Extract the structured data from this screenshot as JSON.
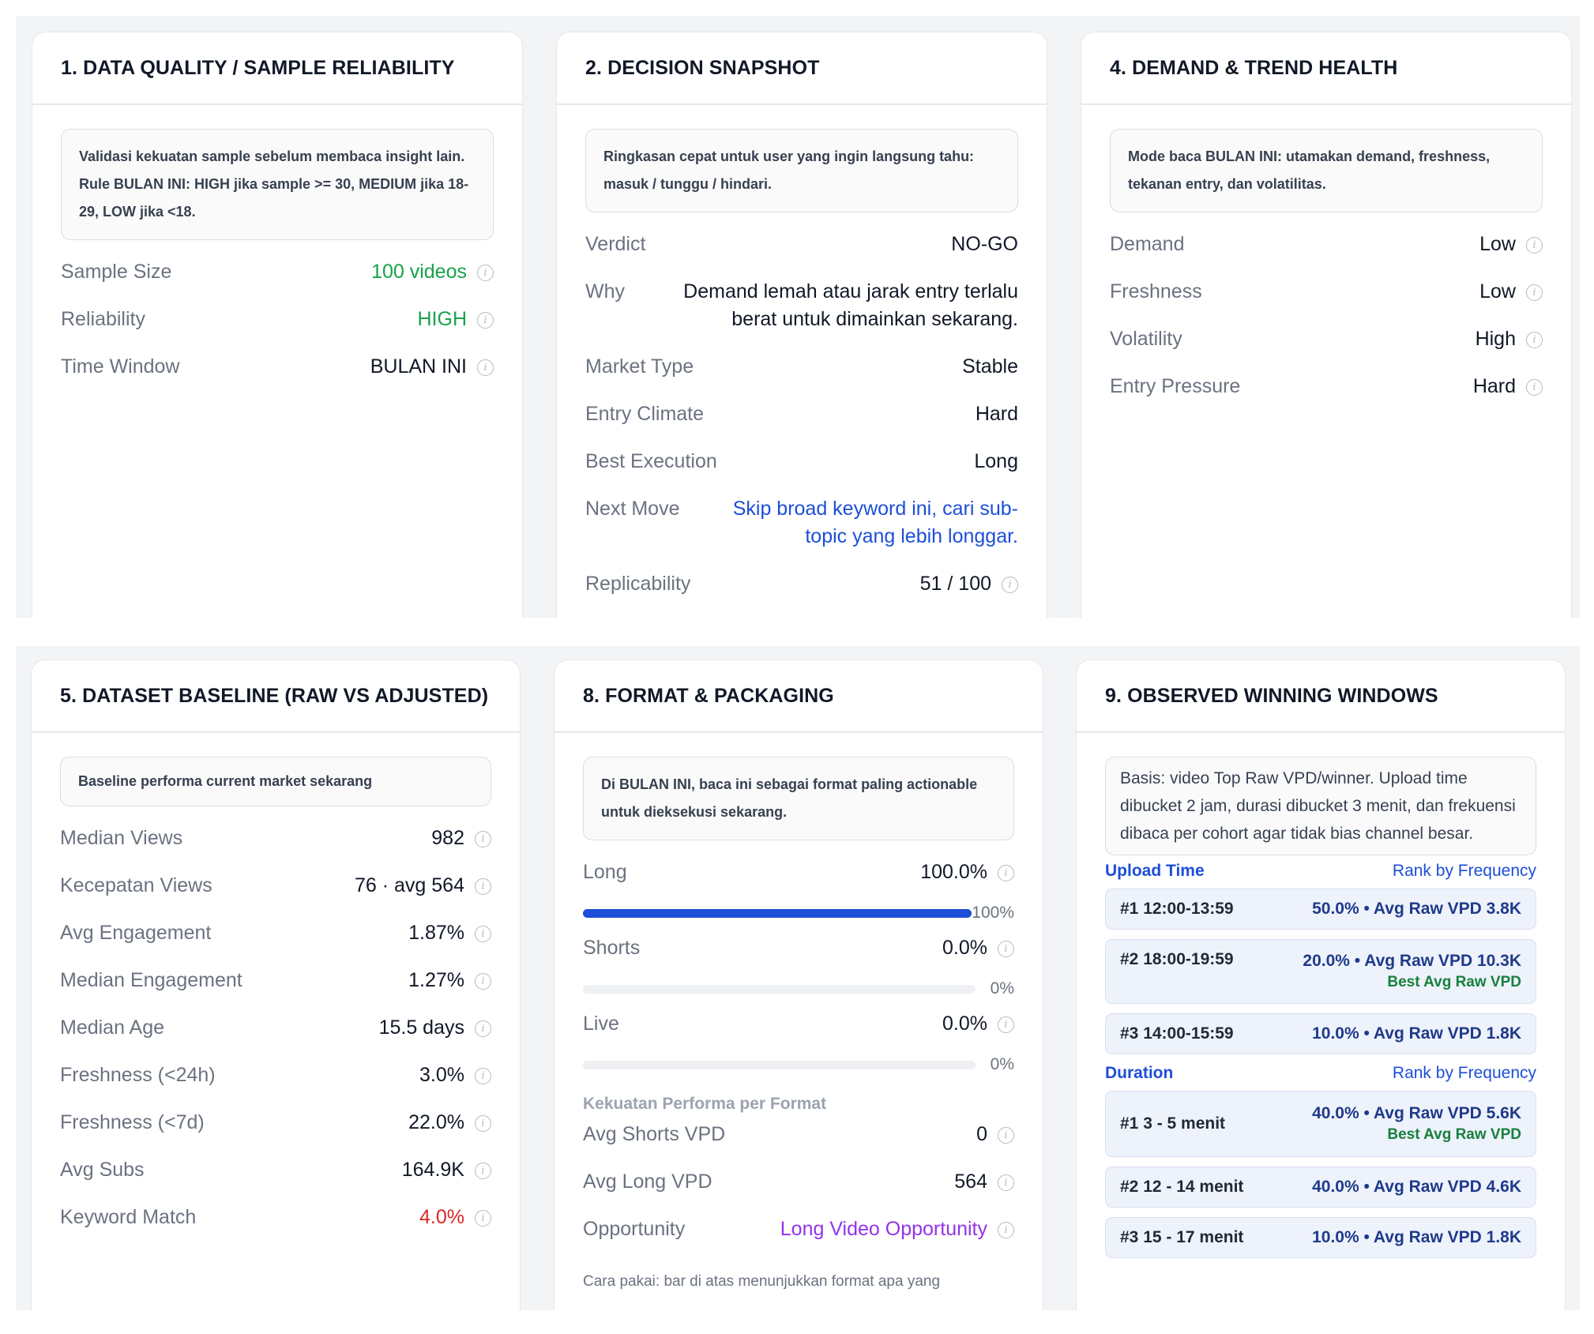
{
  "cards": {
    "data_quality": {
      "title": "1. DATA QUALITY / SAMPLE RELIABILITY",
      "desc": "Validasi kekuatan sample sebelum membaca insight lain. Rule BULAN INI: HIGH jika sample >= 30, MEDIUM jika 18-29, LOW jika <18.",
      "rows": [
        {
          "label": "Sample Size",
          "value": "100 videos"
        },
        {
          "label": "Reliability",
          "value": "HIGH"
        },
        {
          "label": "Time Window",
          "value": "BULAN INI"
        }
      ]
    },
    "decision": {
      "title": "2. DECISION SNAPSHOT",
      "desc": "Ringkasan cepat untuk user yang ingin langsung tahu: masuk / tunggu / hindari.",
      "rows": [
        {
          "label": "Verdict",
          "value": "NO-GO"
        },
        {
          "label": "Why",
          "value": "Demand lemah atau jarak entry terlalu berat untuk dimainkan sekarang."
        },
        {
          "label": "Market Type",
          "value": "Stable"
        },
        {
          "label": "Entry Climate",
          "value": "Hard"
        },
        {
          "label": "Best Execution",
          "value": "Long"
        },
        {
          "label": "Next Move",
          "value": "Skip broad keyword ini, cari sub-topic yang lebih longgar."
        },
        {
          "label": "Replicability",
          "value": "51 / 100"
        }
      ]
    },
    "demand": {
      "title": "4. DEMAND & TREND HEALTH",
      "desc": "Mode baca BULAN INI: utamakan demand, freshness, tekanan entry, dan volatilitas.",
      "rows": [
        {
          "label": "Demand",
          "value": "Low"
        },
        {
          "label": "Freshness",
          "value": "Low"
        },
        {
          "label": "Volatility",
          "value": "High"
        },
        {
          "label": "Entry Pressure",
          "value": "Hard"
        }
      ]
    },
    "baseline": {
      "title": "5. DATASET BASELINE (RAW VS ADJUSTED)",
      "desc": "Baseline performa current market sekarang",
      "rows": [
        {
          "label": "Median Views",
          "value": "982"
        },
        {
          "label": "Kecepatan Views",
          "value": "76 · avg 564"
        },
        {
          "label": "Avg Engagement",
          "value": "1.87%"
        },
        {
          "label": "Median Engagement",
          "value": "1.27%"
        },
        {
          "label": "Median Age",
          "value": "15.5 days"
        },
        {
          "label": "Freshness (<24h)",
          "value": "3.0%"
        },
        {
          "label": "Freshness (<7d)",
          "value": "22.0%"
        },
        {
          "label": "Avg Subs",
          "value": "164.9K"
        },
        {
          "label": "Keyword Match",
          "value": "4.0%"
        }
      ]
    },
    "format": {
      "title": "8. FORMAT & PACKAGING",
      "desc": "Di BULAN INI, baca ini sebagai format paling actionable untuk dieksekusi sekarang.",
      "formats": [
        {
          "label": "Long",
          "value": "100.0%",
          "pct": "100%",
          "fill": 100
        },
        {
          "label": "Shorts",
          "value": "0.0%",
          "pct": "0%",
          "fill": 0
        },
        {
          "label": "Live",
          "value": "0.0%",
          "pct": "0%",
          "fill": 0
        }
      ],
      "subhead": "Kekuatan Performa per Format",
      "rows": [
        {
          "label": "Avg Shorts VPD",
          "value": "0"
        },
        {
          "label": "Avg Long VPD",
          "value": "564"
        },
        {
          "label": "Opportunity",
          "value": "Long Video Opportunity"
        }
      ],
      "footnote": "Cara pakai: bar di atas menunjukkan format apa yang"
    },
    "windows": {
      "title": "9. OBSERVED WINNING WINDOWS",
      "desc": "Basis: video Top Raw VPD/winner. Upload time dibucket 2 jam, durasi dibucket 3 menit, dan frekuensi dibaca per cohort agar tidak bias channel besar.",
      "upload": {
        "label": "Upload Time",
        "rank": "Rank by Frequency",
        "items": [
          {
            "label": "#1 12:00-13:59",
            "stat": "50.0% • Avg Raw VPD 3.8K",
            "best": ""
          },
          {
            "label": "#2 18:00-19:59",
            "stat": "20.0% • Avg Raw VPD 10.3K",
            "best": "Best Avg Raw VPD"
          },
          {
            "label": "#3 14:00-15:59",
            "stat": "10.0% • Avg Raw VPD 1.8K",
            "best": ""
          }
        ]
      },
      "duration": {
        "label": "Duration",
        "rank": "Rank by Frequency",
        "items": [
          {
            "label": "#1 3 - 5 menit",
            "stat": "40.0% • Avg Raw VPD 5.6K",
            "best": "Best Avg Raw VPD"
          },
          {
            "label": "#2 12 - 14 menit",
            "stat": "40.0% • Avg Raw VPD 4.6K",
            "best": ""
          },
          {
            "label": "#3 15 - 17 menit",
            "stat": "10.0% • Avg Raw VPD 1.8K",
            "best": ""
          }
        ]
      }
    }
  },
  "colors": {
    "green": "#16a34a",
    "blue": "#1d4ed8",
    "red": "#dc2626",
    "purple": "#9333ea"
  }
}
